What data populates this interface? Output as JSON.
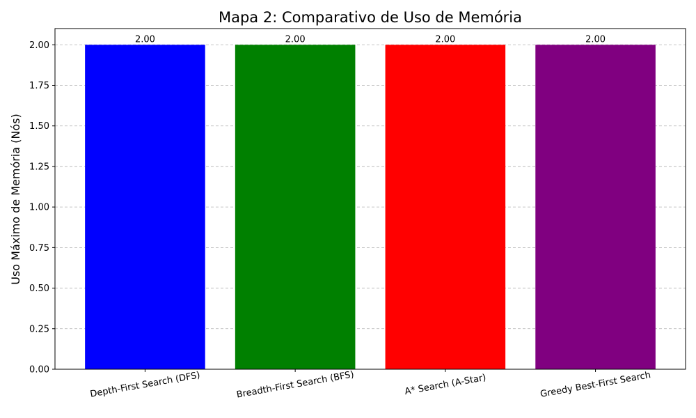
{
  "chart_data": {
    "type": "bar",
    "title": "Mapa 2: Comparativo de Uso de Memória",
    "xlabel": "",
    "ylabel": "Uso Máximo de Memória (Nós)",
    "categories": [
      "Depth-First Search (DFS)",
      "Breadth-First Search (BFS)",
      "A* Search (A-Star)",
      "Greedy Best-First Search"
    ],
    "values": [
      2.0,
      2.0,
      2.0,
      2.0
    ],
    "data_labels": [
      "2.00",
      "2.00",
      "2.00",
      "2.00"
    ],
    "colors": [
      "#0000ff",
      "#008000",
      "#ff0000",
      "#800080"
    ],
    "ylim": [
      0,
      2.1
    ],
    "yticks": [
      0.0,
      0.25,
      0.5,
      0.75,
      1.0,
      1.25,
      1.5,
      1.75,
      2.0
    ],
    "ytick_labels": [
      "0.00",
      "0.25",
      "0.50",
      "0.75",
      "1.00",
      "1.25",
      "1.50",
      "1.75",
      "2.00"
    ],
    "grid": "y-dashed",
    "xtick_rotation": -10
  }
}
